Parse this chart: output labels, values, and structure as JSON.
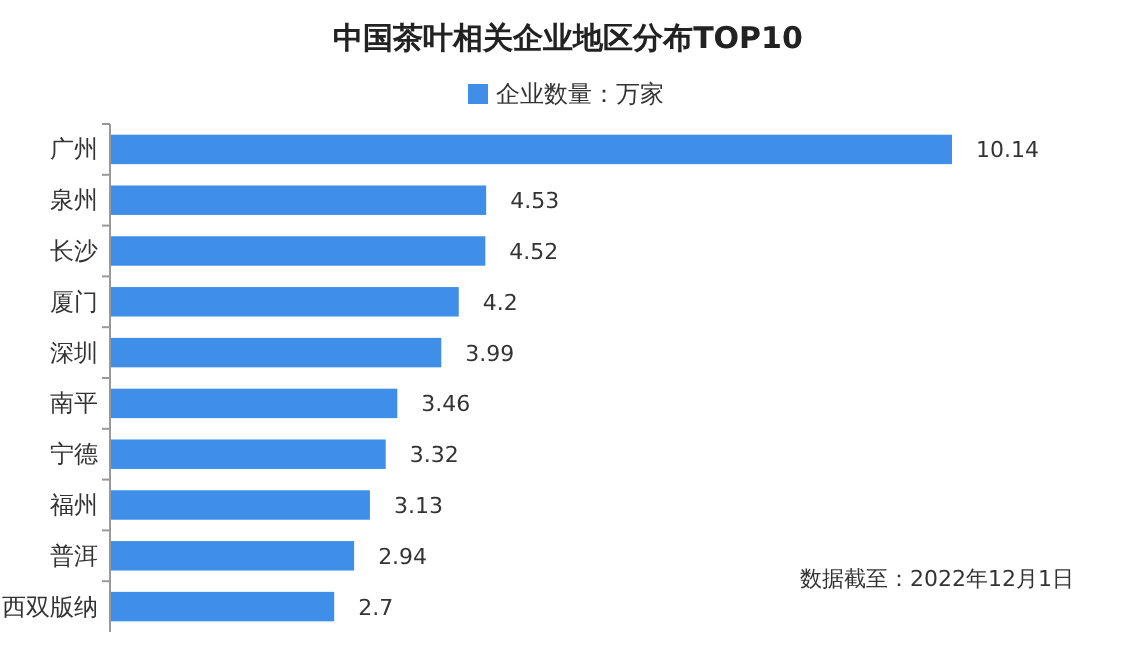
{
  "chart_data": {
    "type": "bar",
    "orientation": "horizontal",
    "title": "中国茶叶相关企业地区分布TOP10",
    "categories": [
      "广州",
      "泉州",
      "长沙",
      "厦门",
      "深圳",
      "南平",
      "宁德",
      "福州",
      "普洱",
      "西双版纳"
    ],
    "series": [
      {
        "name": "企业数量：万家",
        "color": "#3f8ee8",
        "values": [
          10.14,
          4.53,
          4.52,
          4.2,
          3.99,
          3.46,
          3.32,
          3.13,
          2.94,
          2.7
        ]
      }
    ],
    "data_labels": true,
    "legend": "top",
    "annotations": [
      "数据截至：2022年12月1日"
    ]
  }
}
